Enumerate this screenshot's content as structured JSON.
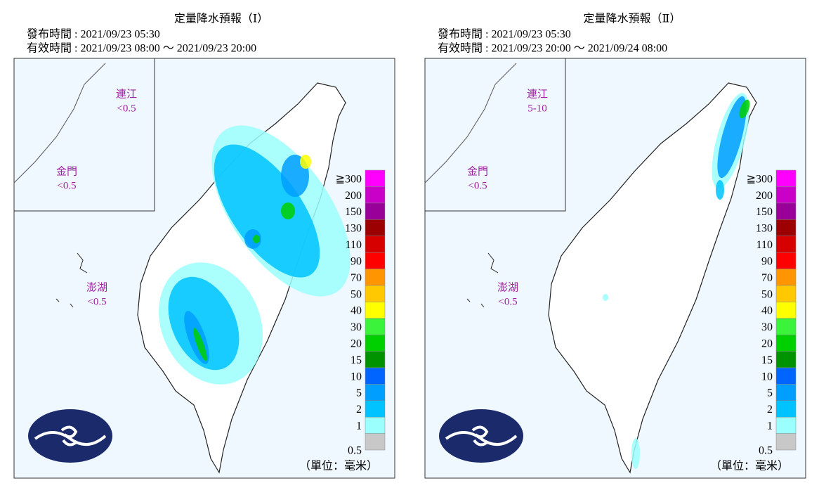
{
  "panels": [
    {
      "title": "定量降水預報（Ⅰ）",
      "issued": "發布時間 : 2021/09/23 05:30",
      "valid": "有效時間 : 2021/09/23 08:00 ～ 2021/09/23 20:00",
      "islands": [
        {
          "name": "連江",
          "value": "<0.5"
        },
        {
          "name": "金門",
          "value": "<0.5"
        },
        {
          "name": "澎湖",
          "value": "<0.5"
        }
      ],
      "unit": "（單位：毫米）"
    },
    {
      "title": "定量降水預報（Ⅱ）",
      "issued": "發布時間 : 2021/09/23 05:30",
      "valid": "有效時間 : 2021/09/23 20:00 ～ 2021/09/24 08:00",
      "islands": [
        {
          "name": "連江",
          "value": "5-10"
        },
        {
          "name": "金門",
          "value": "<0.5"
        },
        {
          "name": "澎湖",
          "value": "<0.5"
        }
      ],
      "unit": "（單位：毫米）"
    }
  ],
  "legend": {
    "labels": [
      "0.5",
      "1",
      "2",
      "5",
      "10",
      "15",
      "20",
      "30",
      "40",
      "50",
      "70",
      "90",
      "110",
      "130",
      "150",
      "200",
      "≧300"
    ],
    "colors": [
      "#c8c8c8",
      "#9bfffd",
      "#00c3ff",
      "#009eff",
      "#0064ff",
      "#009300",
      "#00cf00",
      "#3cf33c",
      "#ffff00",
      "#ffc800",
      "#ff9500",
      "#ff0000",
      "#d60000",
      "#9c0000",
      "#990099",
      "#c800c8",
      "#ff00ff"
    ]
  }
}
